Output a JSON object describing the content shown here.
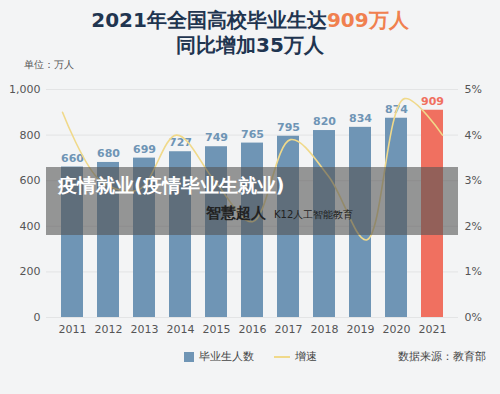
{
  "chart_data": {
    "type": "bar",
    "title": "2021年全国高校毕业生达909万人",
    "subtitle": "同比增加35万人",
    "ylabel": "单位：万人",
    "source": "数据来源：教育部",
    "annotations": [
      "疫情就业(疫情毕业生就业)",
      "智慧超人",
      "K12人工智能教育"
    ],
    "categories": [
      "2011",
      "2012",
      "2013",
      "2014",
      "2015",
      "2016",
      "2017",
      "2018",
      "2019",
      "2020",
      "2021"
    ],
    "series": [
      {
        "name": "毕业生人数",
        "type": "bar",
        "data_labels": true,
        "colors": [
          "#6f95b5",
          "#6f95b5",
          "#6f95b5",
          "#6f95b5",
          "#6f95b5",
          "#6f95b5",
          "#6f95b5",
          "#6f95b5",
          "#6f95b5",
          "#6f95b5",
          "#f07060"
        ],
        "values": [
          660,
          680,
          699,
          727,
          749,
          765,
          795,
          820,
          834,
          874,
          909
        ]
      },
      {
        "name": "增速",
        "type": "line",
        "axis": "y2",
        "color": "#f0d98a",
        "values": [
          4.5,
          3.0,
          2.8,
          4.0,
          3.0,
          2.1,
          3.9,
          3.1,
          1.7,
          4.8,
          4.0
        ]
      }
    ],
    "ylim": [
      0,
      1000
    ],
    "yticks": [
      0,
      200,
      400,
      600,
      800,
      {
        "value": 1000,
        "label": "1,000"
      }
    ],
    "y2lim": [
      0,
      5
    ],
    "y2ticks": [
      {
        "value": 0,
        "label": "0%"
      },
      {
        "value": 1,
        "label": "1%"
      },
      {
        "value": 2,
        "label": "2%"
      },
      {
        "value": 3,
        "label": "3%"
      },
      {
        "value": 4,
        "label": "4%"
      },
      {
        "value": 5,
        "label": "5%"
      }
    ],
    "grid": true,
    "legend": "bottom"
  }
}
